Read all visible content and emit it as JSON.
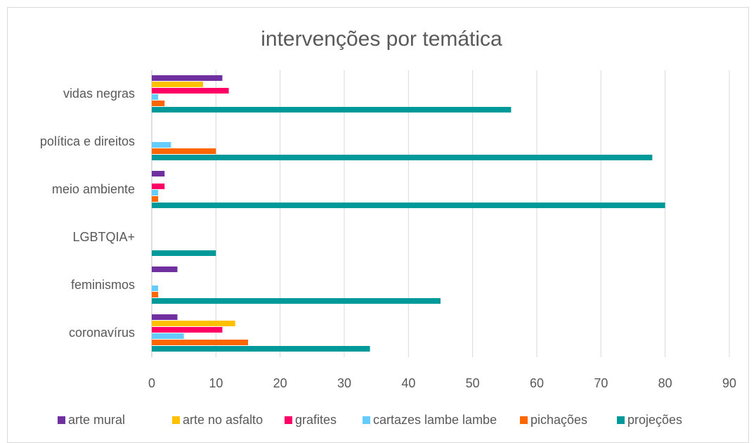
{
  "chart_data": {
    "type": "bar",
    "orientation": "horizontal",
    "title": "intervenções por temática",
    "categories": [
      "vidas negras",
      "política e direitos",
      "meio ambiente",
      "LGBTQIA+",
      "feminismos",
      "coronavírus"
    ],
    "series": [
      {
        "name": "arte mural",
        "color": "#7030a0",
        "values": [
          11,
          0,
          2,
          0,
          4,
          4
        ]
      },
      {
        "name": "arte no asfalto",
        "color": "#ffc000",
        "values": [
          8,
          0,
          0,
          0,
          0,
          13
        ]
      },
      {
        "name": "grafites",
        "color": "#ff0066",
        "values": [
          12,
          0,
          2,
          0,
          0,
          11
        ]
      },
      {
        "name": "cartazes lambe lambe",
        "color": "#66ccff",
        "values": [
          1,
          3,
          1,
          0,
          1,
          5
        ]
      },
      {
        "name": "pichações",
        "color": "#ff6600",
        "values": [
          2,
          10,
          1,
          0,
          1,
          15
        ]
      },
      {
        "name": "projeções",
        "color": "#009999",
        "values": [
          56,
          78,
          80,
          10,
          45,
          34
        ]
      }
    ],
    "xlim": [
      0,
      90
    ],
    "xticks": [
      0,
      10,
      20,
      30,
      40,
      50,
      60,
      70,
      80,
      90
    ],
    "grid": true,
    "legend": "bottom"
  }
}
